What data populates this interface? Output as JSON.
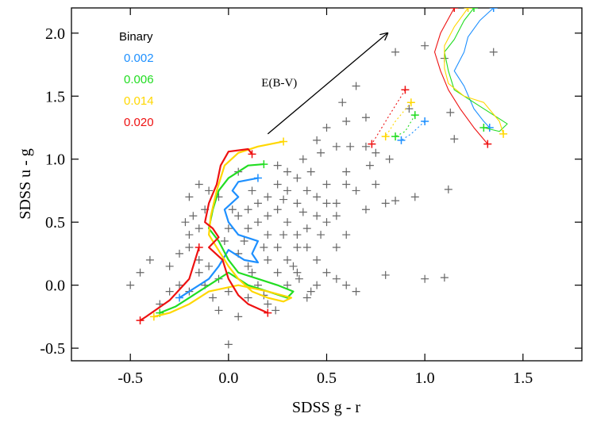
{
  "chart_data": {
    "type": "scatter",
    "xlabel": "SDSS g - r",
    "ylabel": "SDSS u - g",
    "xlim": [
      -0.8,
      1.8
    ],
    "ylim": [
      -0.6,
      2.2
    ],
    "xticks": [
      -0.5,
      {
        "value": 0,
        "label": "0.0"
      },
      0.5,
      {
        "value": 1,
        "label": "1.0"
      },
      1.5
    ],
    "yticks": [
      -0.5,
      {
        "value": 0,
        "label": "0.0"
      },
      0.5,
      {
        "value": 1,
        "label": "1.0"
      },
      1.5,
      {
        "value": 2,
        "label": "2.0"
      }
    ],
    "legend_title": "Binary",
    "legend_position": "upper left",
    "annotation": {
      "text": "E(B-V)",
      "x": [
        0.2,
        0.81
      ],
      "y": [
        1.2,
        2.0
      ]
    },
    "scatter": {
      "color": "#666666",
      "x": [
        -0.5,
        -0.45,
        -0.4,
        -0.35,
        0.0,
        0.05,
        0.8,
        1.0,
        1.1,
        1.12,
        1.35,
        1.15,
        1.13,
        1.1,
        1.0,
        0.92,
        0.85,
        0.65,
        0.58,
        0.7,
        0.6,
        0.85,
        0.95,
        0.75,
        0.8,
        0.7,
        0.72,
        0.82,
        0.6,
        0.65,
        0.55,
        0.5,
        0.62,
        0.7,
        0.45,
        0.55,
        0.6,
        0.5,
        0.45,
        0.55,
        0.6,
        0.5,
        0.42,
        0.38,
        0.47,
        0.4,
        0.35,
        0.3,
        0.35,
        0.3,
        0.25,
        0.25,
        0.3,
        0.35,
        0.4,
        0.45,
        0.5,
        0.55,
        0.6,
        0.65,
        0.45,
        0.4,
        0.35,
        0.3,
        0.25,
        0.2,
        0.2,
        0.15,
        0.2,
        0.25,
        0.15,
        0.1,
        0.1,
        0.05,
        0.08,
        0.0,
        0.02,
        -0.02,
        0.05,
        0.1,
        0.2,
        0.25,
        0.3,
        0.2,
        0.1,
        0.0,
        -0.05,
        -0.1,
        -0.15,
        -0.2,
        -0.25,
        -0.3,
        -0.25,
        -0.2,
        -0.15,
        -0.12,
        -0.08,
        -0.05,
        -0.3,
        -0.15,
        -0.2,
        -0.12,
        -0.18,
        -0.22,
        -0.1,
        -0.05,
        -0.15,
        0.05,
        0.12,
        -0.2,
        0.35,
        0.4,
        0.28,
        0.18,
        0.12,
        0.15,
        0.18,
        0.24,
        0.36,
        0.42,
        0.75,
        0.5,
        0.47,
        0.38,
        0.28,
        0.33,
        0.55,
        0.45
      ],
      "y": [
        0.0,
        0.1,
        0.2,
        -0.15,
        -0.47,
        -0.25,
        0.08,
        0.05,
        0.06,
        0.76,
        1.85,
        1.16,
        1.37,
        1.8,
        1.9,
        1.4,
        1.85,
        1.58,
        1.45,
        1.33,
        1.3,
        0.67,
        0.7,
        0.8,
        0.65,
        0.6,
        0.95,
        1.0,
        0.9,
        0.75,
        1.1,
        1.25,
        1.1,
        1.1,
        1.15,
        0.3,
        0.4,
        0.5,
        0.55,
        0.65,
        0.8,
        0.8,
        0.9,
        1.0,
        1.05,
        0.75,
        0.85,
        0.9,
        0.65,
        0.75,
        0.8,
        0.6,
        0.5,
        0.4,
        0.3,
        0.2,
        0.1,
        0.05,
        0.0,
        -0.05,
        0.0,
        -0.1,
        0.1,
        0.2,
        0.3,
        0.4,
        0.55,
        0.65,
        0.7,
        0.95,
        0.5,
        0.6,
        0.45,
        0.55,
        0.35,
        0.45,
        0.6,
        0.35,
        0.25,
        0.15,
        0.2,
        0.1,
        0.0,
        -0.15,
        -0.1,
        -0.05,
        0.05,
        0.15,
        0.2,
        0.3,
        0.25,
        0.15,
        0.0,
        -0.05,
        0.1,
        0.0,
        -0.1,
        -0.2,
        -0.05,
        0.45,
        0.4,
        0.6,
        0.55,
        0.5,
        0.75,
        0.7,
        0.8,
        0.9,
        0.75,
        0.7,
        0.3,
        0.45,
        0.4,
        0.3,
        0.1,
        0.0,
        -0.08,
        -0.2,
        0.05,
        -0.05,
        1.05,
        0.65,
        0.4,
        0.58,
        0.68,
        0.15,
        0.55,
        0.7
      ]
    },
    "series": [
      {
        "name": "0.002",
        "color": "#1e90ff",
        "x": [
          0.15,
          0.05,
          0.02,
          0.05,
          -0.02,
          0.0,
          0.05,
          0.15,
          0.12,
          0.15,
          0.08,
          0.0,
          -0.05,
          -0.1,
          -0.2,
          -0.25,
          null,
          1.35,
          1.28,
          1.22,
          1.2,
          1.15,
          1.2,
          1.25,
          1.3,
          1.33,
          null,
          1.0,
          0.93,
          0.88
        ],
        "y": [
          0.85,
          0.82,
          0.75,
          0.7,
          0.6,
          0.5,
          0.4,
          0.35,
          0.25,
          0.18,
          0.2,
          0.28,
          0.15,
          0.05,
          -0.05,
          -0.1,
          null,
          2.2,
          2.1,
          1.97,
          1.85,
          1.7,
          1.58,
          1.4,
          1.3,
          1.25,
          null,
          1.3,
          1.2,
          1.15
        ]
      },
      {
        "name": "0.006",
        "color": "#22dd22",
        "x": [
          0.18,
          0.1,
          0.0,
          -0.05,
          -0.08,
          -0.1,
          -0.05,
          0.0,
          0.05,
          0.15,
          0.25,
          0.33,
          0.3,
          0.2,
          0.1,
          0.0,
          -0.1,
          -0.2,
          -0.27,
          -0.35,
          null,
          1.25,
          1.2,
          1.15,
          1.1,
          1.12,
          1.15,
          1.25,
          1.35,
          1.42,
          1.38,
          1.3,
          null,
          0.95,
          0.9,
          0.85
        ],
        "y": [
          0.96,
          0.95,
          0.85,
          0.75,
          0.6,
          0.45,
          0.35,
          0.2,
          0.1,
          0.05,
          0.0,
          -0.05,
          -0.1,
          -0.05,
          0.0,
          0.1,
          0.0,
          -0.1,
          -0.17,
          -0.22,
          null,
          2.2,
          2.1,
          1.95,
          1.85,
          1.7,
          1.55,
          1.45,
          1.35,
          1.28,
          1.22,
          1.25,
          null,
          1.35,
          1.22,
          1.18
        ]
      },
      {
        "name": "0.014",
        "color": "#ffd700",
        "x": [
          0.28,
          0.15,
          0.05,
          -0.02,
          -0.06,
          -0.09,
          -0.1,
          -0.06,
          0.0,
          0.05,
          0.12,
          0.2,
          0.28,
          0.32,
          0.2,
          0.05,
          -0.1,
          -0.2,
          -0.3,
          -0.38,
          null,
          1.22,
          1.15,
          1.1,
          1.1,
          1.12,
          1.2,
          1.3,
          1.38,
          1.4,
          null,
          0.93,
          0.85,
          0.8
        ],
        "y": [
          1.14,
          1.1,
          1.05,
          0.95,
          0.75,
          0.55,
          0.4,
          0.3,
          0.15,
          0.05,
          -0.05,
          -0.1,
          -0.13,
          -0.1,
          -0.05,
          0.0,
          -0.05,
          -0.15,
          -0.22,
          -0.25,
          null,
          2.2,
          2.05,
          1.9,
          1.72,
          1.6,
          1.5,
          1.45,
          1.3,
          1.2,
          null,
          1.45,
          1.3,
          1.18
        ]
      },
      {
        "name": "0.020",
        "color": "#ee1111",
        "x": [
          0.12,
          0.1,
          0.0,
          -0.04,
          -0.06,
          -0.1,
          -0.12,
          -0.08,
          -0.05,
          -0.1,
          -0.03,
          0.0,
          0.05,
          0.1,
          0.2,
          null,
          -0.15,
          -0.2,
          -0.3,
          -0.42,
          -0.45,
          null,
          1.15,
          1.08,
          1.05,
          1.08,
          1.12,
          1.18,
          1.25,
          1.32,
          null,
          0.9,
          0.82,
          0.73
        ],
        "y": [
          1.04,
          1.08,
          1.06,
          0.95,
          0.8,
          0.65,
          0.5,
          0.45,
          0.38,
          0.3,
          0.2,
          0.05,
          -0.08,
          -0.15,
          -0.22,
          null,
          0.3,
          0.05,
          -0.12,
          -0.25,
          -0.28,
          null,
          2.2,
          2.0,
          1.85,
          1.7,
          1.55,
          1.4,
          1.25,
          1.12,
          null,
          1.55,
          1.35,
          1.12
        ]
      }
    ]
  }
}
